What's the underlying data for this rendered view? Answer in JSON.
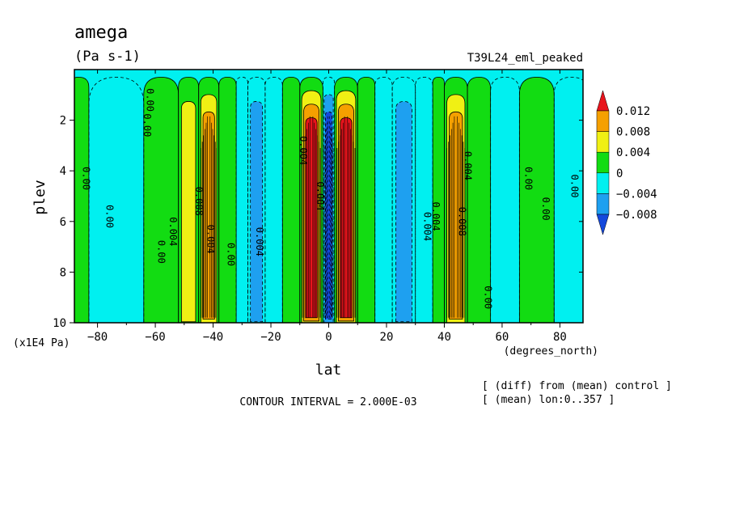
{
  "chart_data": {
    "type": "heatmap",
    "title": "amega",
    "units": "(Pa s-1)",
    "run_label": "T39L24_eml_peaked",
    "xlabel": "lat",
    "x_unit_label": "(degrees_north)",
    "ylabel": "plev",
    "y_unit_label": "(x1E4 Pa)",
    "xlim": [
      -88,
      88
    ],
    "ylim": [
      10,
      0
    ],
    "x_ticks": [
      -80,
      -60,
      -40,
      -20,
      0,
      20,
      40,
      60,
      80
    ],
    "x_tick_labels": [
      "−80",
      "−60",
      "−40",
      "−20",
      "0",
      "20",
      "40",
      "60",
      "80"
    ],
    "y_ticks": [
      2,
      4,
      6,
      8,
      10
    ],
    "y_tick_labels": [
      "2",
      "4",
      "6",
      "8",
      "10"
    ],
    "contour_interval_text": "CONTOUR INTERVAL = 2.000E-03",
    "notes": [
      "[ (diff) from (mean) control ]",
      "[ (mean) lon:0..357 ]"
    ],
    "colorbar": {
      "levels": [
        0.012,
        0.008,
        0.004,
        0,
        -0.004,
        -0.008
      ],
      "labels": [
        "0.012",
        "0.008",
        "0.004",
        "0",
        "−0.004",
        "−0.008"
      ],
      "colors": [
        "#e8141c",
        "#f5a000",
        "#f0f014",
        "#12dc12",
        "#00f0f0",
        "#1ea0f0",
        "#1448dc"
      ]
    },
    "contour_labels": [
      "0.00",
      "0.00",
      "0.00",
      "0.00",
      "0.004",
      "0.008",
      "0.004",
      "0.00",
      "0.004",
      "0.004",
      "0.004",
      "0.004",
      "0.004",
      "0.008",
      "0.004",
      "0.00",
      "0.00",
      "0.00",
      "0.00",
      "0.00"
    ],
    "bands": [
      {
        "lat_min": -90,
        "lat_max": -83,
        "value": 0.002
      },
      {
        "lat_min": -83,
        "lat_max": -64,
        "value": -0.002
      },
      {
        "lat_min": -64,
        "lat_max": -52,
        "value": 0.002
      },
      {
        "lat_min": -52,
        "lat_max": -45,
        "value": 0.006
      },
      {
        "lat_min": -45,
        "lat_max": -38,
        "value": 0.01
      },
      {
        "lat_min": -38,
        "lat_max": -32,
        "value": 0.002
      },
      {
        "lat_min": -32,
        "lat_max": -28,
        "value": -0.002
      },
      {
        "lat_min": -28,
        "lat_max": -22,
        "value": -0.008
      },
      {
        "lat_min": -22,
        "lat_max": -16,
        "value": -0.002
      },
      {
        "lat_min": -16,
        "lat_max": -10,
        "value": 0.002
      },
      {
        "lat_min": -10,
        "lat_max": -2,
        "value": 0.014
      },
      {
        "lat_min": -2,
        "lat_max": 2,
        "value": -0.01
      },
      {
        "lat_min": 2,
        "lat_max": 10,
        "value": 0.014
      },
      {
        "lat_min": 10,
        "lat_max": 16,
        "value": 0.002
      },
      {
        "lat_min": 16,
        "lat_max": 22,
        "value": -0.002
      },
      {
        "lat_min": 22,
        "lat_max": 30,
        "value": -0.008
      },
      {
        "lat_min": 30,
        "lat_max": 36,
        "value": -0.002
      },
      {
        "lat_min": 36,
        "lat_max": 40,
        "value": 0.002
      },
      {
        "lat_min": 40,
        "lat_max": 48,
        "value": 0.01
      },
      {
        "lat_min": 48,
        "lat_max": 56,
        "value": 0.002
      },
      {
        "lat_min": 56,
        "lat_max": 66,
        "value": -0.002
      },
      {
        "lat_min": 66,
        "lat_max": 78,
        "value": 0.002
      },
      {
        "lat_min": 78,
        "lat_max": 90,
        "value": -0.002
      }
    ]
  }
}
